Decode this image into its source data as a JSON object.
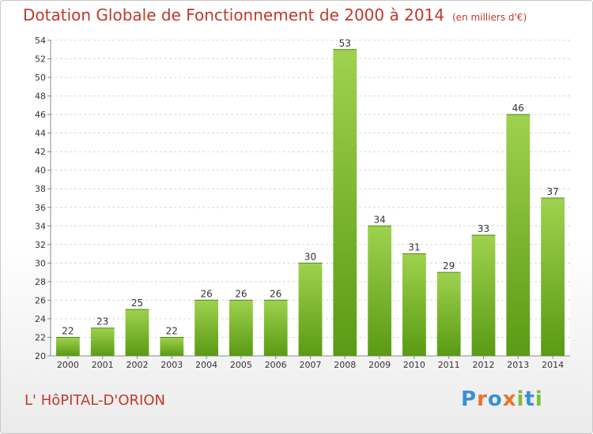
{
  "title": "Dotation Globale de Fonctionnement de 2000 à 2014",
  "subtitle": "(en milliers d'€)",
  "commune": "L' HôPITAL-D'ORION",
  "logo": {
    "letters": [
      "P",
      "r",
      "o",
      "x",
      "i",
      "t",
      "i"
    ],
    "colors": [
      "#3a8fd6",
      "#e8732b",
      "#3a8fd6",
      "#e8732b",
      "#7cbd3a",
      "#3a8fd6",
      "#7cbd3a"
    ]
  },
  "colors": {
    "bar_light": "#9fd24e",
    "bar_dark": "#5a9a14",
    "title": "#c0392b"
  },
  "chart_data": {
    "type": "bar",
    "title": "Dotation Globale de Fonctionnement de 2000 à 2014",
    "subtitle": "(en milliers d'€)",
    "xlabel": "",
    "ylabel": "",
    "categories": [
      "2000",
      "2001",
      "2002",
      "2003",
      "2004",
      "2005",
      "2006",
      "2007",
      "2008",
      "2009",
      "2010",
      "2011",
      "2012",
      "2013",
      "2014"
    ],
    "values": [
      22,
      23,
      25,
      22,
      26,
      26,
      26,
      30,
      53,
      34,
      31,
      29,
      33,
      46,
      37
    ],
    "ylim": [
      20,
      54
    ],
    "yticks": [
      20,
      22,
      24,
      26,
      28,
      30,
      32,
      34,
      36,
      38,
      40,
      42,
      44,
      46,
      48,
      50,
      52,
      54
    ],
    "grid": true,
    "legend": "none"
  }
}
